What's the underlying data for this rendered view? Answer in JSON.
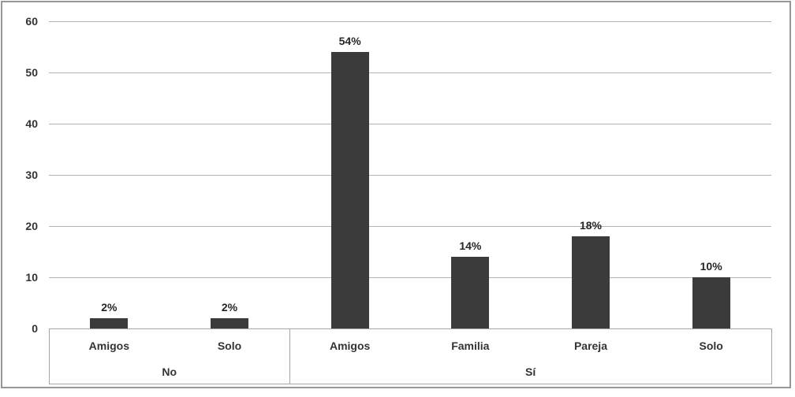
{
  "window": {
    "background_color": "#ffffff",
    "frame_border_color": "#969696"
  },
  "chart_data": {
    "type": "bar",
    "title": "",
    "legend": "none",
    "grid": true,
    "y_axis": {
      "min": 0,
      "max": 60,
      "step": 10,
      "tick_labels": [
        "0",
        "10",
        "20",
        "30",
        "40",
        "50",
        "60"
      ]
    },
    "x_axis": {
      "groups": [
        {
          "label": "No",
          "items": [
            {
              "category": "Amigos",
              "value": 2,
              "data_label": "2%"
            },
            {
              "category": "Solo",
              "value": 2,
              "data_label": "2%"
            }
          ]
        },
        {
          "label": "Sí",
          "items": [
            {
              "category": "Amigos",
              "value": 54,
              "data_label": "54%"
            },
            {
              "category": "Familia",
              "value": 14,
              "data_label": "14%"
            },
            {
              "category": "Pareja",
              "value": 18,
              "data_label": "18%"
            },
            {
              "category": "Solo",
              "value": 10,
              "data_label": "10%"
            }
          ]
        }
      ]
    },
    "colors": {
      "bar": "#3b3b3b",
      "gridline": "#b3b3b3",
      "axis": "#a6a6a6",
      "tick_text": "#333333",
      "data_label_text": "#262626"
    }
  }
}
